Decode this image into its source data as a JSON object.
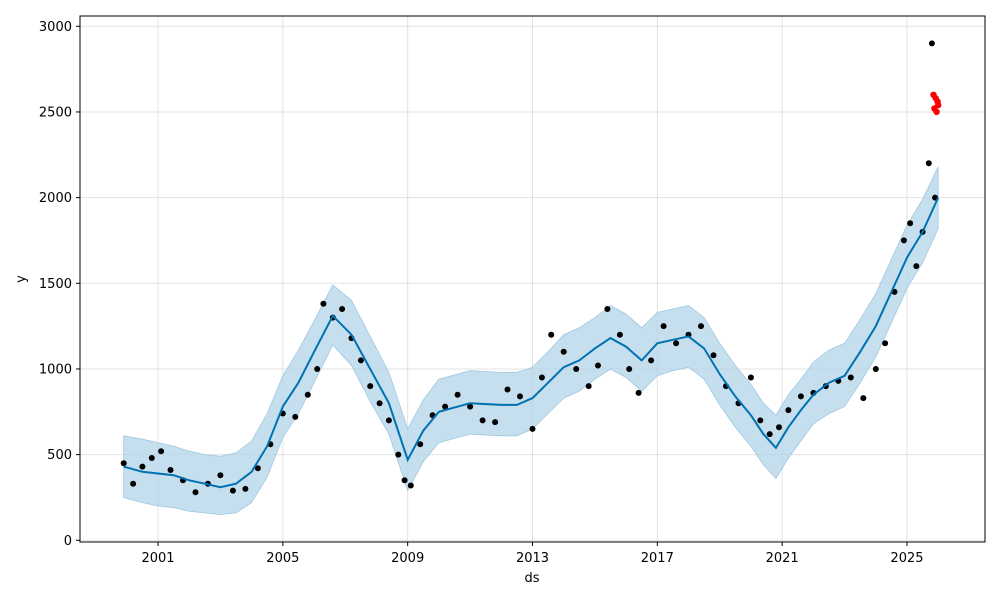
{
  "chart_data": {
    "type": "line",
    "title": "",
    "xlabel": "ds",
    "ylabel": "y",
    "xlim": [
      1998.5,
      2027.5
    ],
    "ylim": [
      -10,
      3060
    ],
    "xticks": [
      2001,
      2005,
      2009,
      2013,
      2017,
      2021,
      2025
    ],
    "xtick_labels": [
      "2001",
      "2005",
      "2009",
      "2013",
      "2017",
      "2021",
      "2025"
    ],
    "yticks": [
      0,
      500,
      1000,
      1500,
      2000,
      2500,
      3000
    ],
    "ytick_labels": [
      "0",
      "500",
      "1000",
      "1500",
      "2000",
      "2500",
      "3000"
    ],
    "grid": true,
    "legend": "none",
    "colors": {
      "forecast": "#0072b2",
      "interval": "#b3d4ea",
      "observed": "#000000",
      "highlighted": "#ff0000"
    },
    "series": [
      {
        "role": "observed",
        "x": [
          1999.9,
          2000.2,
          2000.5,
          2000.8,
          2001.1,
          2001.4,
          2001.8,
          2002.2,
          2002.6,
          2003.0,
          2003.4,
          2003.8,
          2004.2,
          2004.6,
          2005.0,
          2005.4,
          2005.8,
          2006.1,
          2006.3,
          2006.6,
          2006.9,
          2007.2,
          2007.5,
          2007.8,
          2008.1,
          2008.4,
          2008.7,
          2008.9,
          2009.1,
          2009.4,
          2009.8,
          2010.2,
          2010.6,
          2011.0,
          2011.4,
          2011.8,
          2012.2,
          2012.6,
          2013.0,
          2013.3,
          2013.6,
          2014.0,
          2014.4,
          2014.8,
          2015.1,
          2015.4,
          2015.8,
          2016.1,
          2016.4,
          2016.8,
          2017.2,
          2017.6,
          2018.0,
          2018.4,
          2018.8,
          2019.2,
          2019.6,
          2020.0,
          2020.3,
          2020.6,
          2020.9,
          2021.2,
          2021.6,
          2022.0,
          2022.4,
          2022.8,
          2023.2,
          2023.6,
          2024.0,
          2024.3,
          2024.6,
          2024.9,
          2025.1,
          2025.3,
          2025.5,
          2025.7,
          2025.8,
          2025.9
        ],
        "y": [
          450,
          330,
          430,
          480,
          520,
          410,
          350,
          280,
          330,
          380,
          290,
          300,
          420,
          560,
          740,
          720,
          850,
          1000,
          1380,
          1300,
          1350,
          1180,
          1050,
          900,
          800,
          700,
          500,
          350,
          320,
          560,
          730,
          780,
          850,
          780,
          700,
          690,
          880,
          840,
          650,
          950,
          1200,
          1100,
          1000,
          900,
          1020,
          1350,
          1200,
          1000,
          860,
          1050,
          1250,
          1150,
          1200,
          1250,
          1080,
          900,
          800,
          950,
          700,
          620,
          660,
          760,
          840,
          860,
          900,
          930,
          950,
          830,
          1000,
          1150,
          1450,
          1750,
          1850,
          1600,
          1800,
          2200,
          2900,
          2000
        ]
      },
      {
        "role": "highlighted",
        "x": [
          2025.85,
          2025.88,
          2025.92,
          2025.95,
          2025.98,
          2026.0
        ],
        "y": [
          2600,
          2520,
          2580,
          2500,
          2560,
          2540
        ]
      },
      {
        "role": "forecast",
        "x": [
          1999.9,
          2000.5,
          2001.0,
          2001.5,
          2002.0,
          2002.5,
          2003.0,
          2003.5,
          2004.0,
          2004.5,
          2005.0,
          2005.5,
          2006.0,
          2006.6,
          2007.2,
          2007.8,
          2008.4,
          2009.0,
          2009.5,
          2010.0,
          2011.0,
          2012.0,
          2012.5,
          2013.0,
          2013.5,
          2014.0,
          2014.5,
          2015.0,
          2015.5,
          2016.0,
          2016.5,
          2017.0,
          2017.5,
          2018.0,
          2018.5,
          2019.0,
          2019.5,
          2020.0,
          2020.4,
          2020.8,
          2021.2,
          2021.6,
          2022.0,
          2022.5,
          2023.0,
          2023.5,
          2024.0,
          2024.5,
          2025.0,
          2025.5,
          2026.0
        ],
        "y": [
          430,
          400,
          390,
          380,
          350,
          330,
          310,
          330,
          400,
          550,
          780,
          920,
          1100,
          1310,
          1200,
          1000,
          800,
          470,
          640,
          750,
          800,
          790,
          790,
          830,
          920,
          1010,
          1050,
          1120,
          1180,
          1130,
          1050,
          1150,
          1170,
          1190,
          1120,
          970,
          840,
          730,
          620,
          540,
          660,
          760,
          850,
          920,
          960,
          1100,
          1250,
          1450,
          1650,
          1800,
          2000
        ]
      },
      {
        "role": "interval-upper",
        "x": [
          1999.9,
          2000.5,
          2001.0,
          2001.5,
          2002.0,
          2002.5,
          2003.0,
          2003.5,
          2004.0,
          2004.5,
          2005.0,
          2005.5,
          2006.0,
          2006.6,
          2007.2,
          2007.8,
          2008.4,
          2009.0,
          2009.5,
          2010.0,
          2011.0,
          2012.0,
          2012.5,
          2013.0,
          2013.5,
          2014.0,
          2014.5,
          2015.0,
          2015.5,
          2016.0,
          2016.5,
          2017.0,
          2017.5,
          2018.0,
          2018.5,
          2019.0,
          2019.5,
          2020.0,
          2020.4,
          2020.8,
          2021.2,
          2021.6,
          2022.0,
          2022.5,
          2023.0,
          2023.5,
          2024.0,
          2024.5,
          2025.0,
          2025.5,
          2026.0
        ],
        "y": [
          610,
          590,
          570,
          550,
          520,
          500,
          490,
          510,
          580,
          740,
          960,
          1110,
          1280,
          1490,
          1400,
          1190,
          980,
          650,
          820,
          940,
          990,
          980,
          980,
          1010,
          1100,
          1200,
          1240,
          1300,
          1370,
          1320,
          1240,
          1330,
          1350,
          1370,
          1300,
          1150,
          1020,
          910,
          800,
          730,
          850,
          940,
          1040,
          1110,
          1150,
          1290,
          1440,
          1640,
          1840,
          1990,
          2180
        ]
      },
      {
        "role": "interval-lower",
        "x": [
          1999.9,
          2000.5,
          2001.0,
          2001.5,
          2002.0,
          2002.5,
          2003.0,
          2003.5,
          2004.0,
          2004.5,
          2005.0,
          2005.5,
          2006.0,
          2006.6,
          2007.2,
          2007.8,
          2008.4,
          2009.0,
          2009.5,
          2010.0,
          2011.0,
          2012.0,
          2012.5,
          2013.0,
          2013.5,
          2014.0,
          2014.5,
          2015.0,
          2015.5,
          2016.0,
          2016.5,
          2017.0,
          2017.5,
          2018.0,
          2018.5,
          2019.0,
          2019.5,
          2020.0,
          2020.4,
          2020.8,
          2021.2,
          2021.6,
          2022.0,
          2022.5,
          2023.0,
          2023.5,
          2024.0,
          2024.5,
          2025.0,
          2025.5,
          2026.0
        ],
        "y": [
          250,
          220,
          200,
          190,
          170,
          160,
          150,
          160,
          220,
          370,
          600,
          740,
          920,
          1140,
          1020,
          810,
          620,
          290,
          460,
          570,
          620,
          610,
          610,
          650,
          740,
          830,
          870,
          940,
          1000,
          950,
          870,
          960,
          990,
          1010,
          940,
          790,
          660,
          550,
          440,
          360,
          480,
          580,
          680,
          740,
          780,
          920,
          1070,
          1270,
          1470,
          1620,
          1820
        ]
      }
    ]
  }
}
